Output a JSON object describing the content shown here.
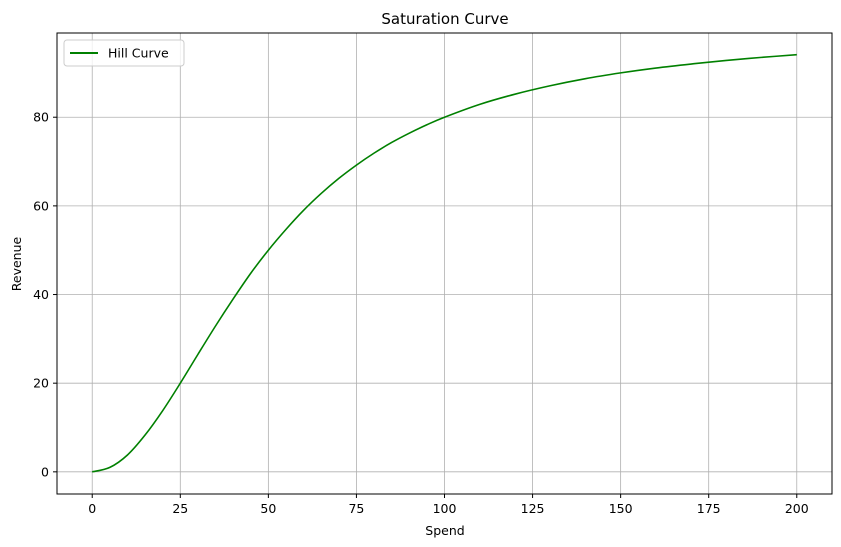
{
  "chart_data": {
    "type": "line",
    "title": "Saturation Curve",
    "xlabel": "Spend",
    "ylabel": "Revenue",
    "xlim": [
      -10,
      210
    ],
    "ylim": [
      -5,
      99
    ],
    "xticks": [
      0,
      25,
      50,
      75,
      100,
      125,
      150,
      175,
      200
    ],
    "yticks": [
      0,
      20,
      40,
      60,
      80
    ],
    "grid": true,
    "legend_position": "top-left",
    "series": [
      {
        "name": "Hill Curve",
        "color": "#008000",
        "x": [
          0,
          5,
          10,
          15,
          20,
          25,
          30,
          35,
          40,
          45,
          50,
          55,
          60,
          65,
          70,
          75,
          80,
          85,
          90,
          95,
          100,
          110,
          120,
          130,
          140,
          150,
          160,
          170,
          180,
          190,
          200
        ],
        "y": [
          0,
          1.0,
          3.8,
          8.3,
          13.8,
          20.0,
          26.5,
          32.9,
          39.0,
          44.8,
          50.0,
          54.7,
          59.0,
          62.8,
          66.2,
          69.2,
          71.9,
          74.3,
          76.4,
          78.3,
          80.0,
          82.9,
          85.2,
          87.1,
          88.7,
          90.0,
          91.1,
          92.0,
          92.8,
          93.5,
          94.1
        ]
      }
    ]
  }
}
